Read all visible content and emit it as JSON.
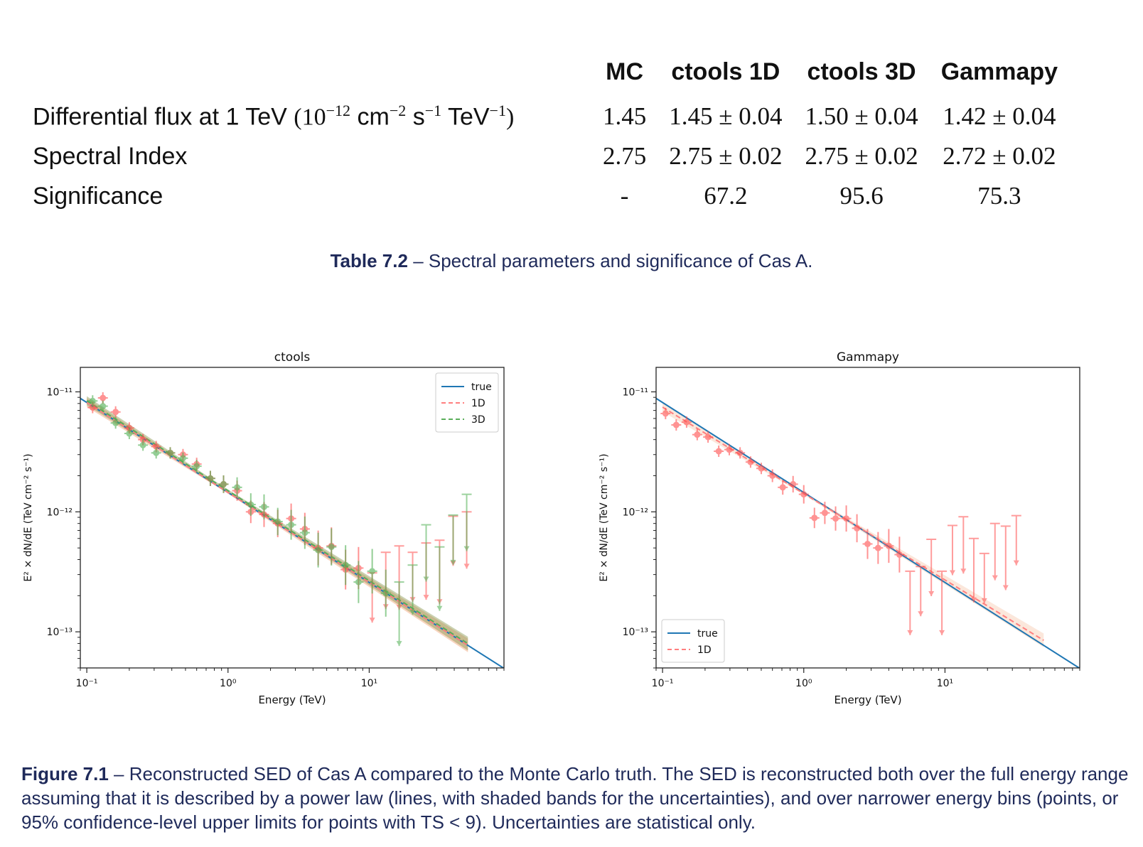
{
  "table": {
    "headers": [
      "MC",
      "ctools 1D",
      "ctools 3D",
      "Gammapy"
    ],
    "rows": [
      {
        "label": "Differential flux at 1 TeV",
        "unit_open": "(10",
        "unit_exp1": "−12",
        "unit_cm": " cm",
        "unit_exp2": "−2",
        "unit_s": " s",
        "unit_exp3": "−1",
        "unit_tev": " TeV",
        "unit_exp4": "−1",
        "unit_close": ")",
        "values": [
          "1.45",
          "1.45 ± 0.04",
          "1.50 ± 0.04",
          "1.42 ± 0.04"
        ]
      },
      {
        "label": "Spectral Index",
        "values": [
          "2.75",
          "2.75 ± 0.02",
          "2.75 ± 0.02",
          "2.72 ± 0.02"
        ]
      },
      {
        "label": "Significance",
        "values": [
          "-",
          "67.2",
          "95.6",
          "75.3"
        ]
      }
    ],
    "caption_label": "Table 7.2",
    "caption_text": " – Spectral parameters and significance of Cas A."
  },
  "figure": {
    "caption_label": "Figure 7.1",
    "caption_text": " – Reconstructed SED of Cas A compared to the Monte Carlo truth. The SED is reconstructed both over the full energy range assuming that it is described by a power law (lines, with shaded bands for the uncertainties), and over narrower energy bins (points, or 95% confidence-level upper limits for points with TS < 9). Uncertainties are statistical only."
  },
  "chart_data": [
    {
      "type": "scatter",
      "title": "ctools",
      "xlabel": "Energy (TeV)",
      "ylabel": "E² × dN/dE (TeV cm⁻² s⁻¹)",
      "xscale": "log",
      "yscale": "log",
      "xlim": [
        0.09,
        90
      ],
      "ylim": [
        5e-14,
        1.6e-11
      ],
      "x_ticks": [
        "10⁻¹",
        "10⁰",
        "10¹"
      ],
      "y_ticks": [
        "10⁻¹¹",
        "10⁻¹²",
        "10⁻¹³"
      ],
      "legend": {
        "position": "top-right",
        "entries": [
          "true",
          "1D",
          "3D"
        ]
      },
      "true_line": {
        "norm_at_1TeV": 1.45e-12,
        "index": 2.75,
        "x_range": [
          0.09,
          90
        ],
        "color": "#1f77b4"
      },
      "fit_lines": [
        {
          "name": "1D",
          "norm_at_1TeV": 1.45e-12,
          "index": 2.75,
          "x_range": [
            0.1,
            50
          ],
          "color": "#ff7f7f"
        },
        {
          "name": "3D",
          "norm_at_1TeV": 1.5e-12,
          "index": 2.75,
          "x_range": [
            0.1,
            50
          ],
          "color": "#5aae5a"
        }
      ],
      "series": [
        {
          "name": "1D",
          "color": "#ff4d4d",
          "points": [
            [
              0.11,
              7.4e-12
            ],
            [
              0.13,
              8.9e-12
            ],
            [
              0.16,
              6.8e-12
            ],
            [
              0.2,
              5e-12
            ],
            [
              0.25,
              4e-12
            ],
            [
              0.31,
              3.5e-12
            ],
            [
              0.39,
              3.1e-12
            ],
            [
              0.48,
              3e-12
            ],
            [
              0.6,
              2.5e-12
            ],
            [
              0.75,
              1.9e-12
            ],
            [
              0.93,
              1.7e-12
            ],
            [
              1.16,
              1.5e-12
            ],
            [
              1.45,
              1e-12
            ],
            [
              1.8,
              9.5e-13
            ],
            [
              2.25,
              8e-13
            ],
            [
              2.8,
              8.8e-13
            ],
            [
              3.5,
              7.2e-13
            ],
            [
              4.35,
              5e-13
            ],
            [
              5.4,
              5.2e-13
            ],
            [
              6.8,
              3.3e-13
            ],
            [
              8.4,
              3.4e-13
            ],
            [
              10.5,
              3.1e-13
            ],
            [
              13.1,
              4.6e-13
            ],
            [
              16.3,
              5.2e-13
            ],
            [
              20.3,
              4.6e-13
            ],
            [
              25.3,
              5.5e-13
            ],
            [
              31.5,
              5.8e-13
            ],
            [
              39.3,
              9.2e-13
            ],
            [
              49,
              1e-12
            ]
          ],
          "upper_limits": [
            false,
            false,
            false,
            false,
            false,
            false,
            false,
            false,
            false,
            false,
            false,
            false,
            false,
            false,
            false,
            false,
            false,
            false,
            false,
            false,
            false,
            true,
            true,
            true,
            true,
            true,
            true,
            true,
            true
          ]
        },
        {
          "name": "3D",
          "color": "#4caf50",
          "points": [
            [
              0.11,
              8.4e-12
            ],
            [
              0.13,
              7.6e-12
            ],
            [
              0.16,
              5.5e-12
            ],
            [
              0.2,
              4.5e-12
            ],
            [
              0.25,
              3.6e-12
            ],
            [
              0.31,
              3.1e-12
            ],
            [
              0.39,
              3.1e-12
            ],
            [
              0.48,
              2.8e-12
            ],
            [
              0.6,
              2.4e-12
            ],
            [
              0.75,
              1.9e-12
            ],
            [
              0.93,
              1.7e-12
            ],
            [
              1.16,
              1.6e-12
            ],
            [
              1.45,
              1.15e-12
            ],
            [
              1.8,
              1.1e-12
            ],
            [
              2.25,
              8.3e-13
            ],
            [
              2.8,
              7.8e-13
            ],
            [
              3.5,
              6.7e-13
            ],
            [
              4.35,
              4.8e-13
            ],
            [
              5.4,
              5.1e-13
            ],
            [
              6.8,
              3.6e-13
            ],
            [
              8.4,
              2.6e-13
            ],
            [
              10.5,
              3.2e-13
            ],
            [
              13.1,
              2.1e-13
            ],
            [
              16.3,
              2.6e-13
            ],
            [
              20.3,
              3.6e-13
            ],
            [
              25.3,
              7.8e-13
            ],
            [
              31.5,
              5.1e-13
            ],
            [
              39.3,
              9.4e-13
            ],
            [
              49,
              1.4e-12
            ]
          ],
          "upper_limits": [
            false,
            false,
            false,
            false,
            false,
            false,
            false,
            false,
            false,
            false,
            false,
            false,
            false,
            false,
            false,
            false,
            false,
            false,
            false,
            false,
            false,
            false,
            false,
            true,
            true,
            true,
            true,
            true,
            true
          ]
        }
      ]
    },
    {
      "type": "scatter",
      "title": "Gammapy",
      "xlabel": "Energy (TeV)",
      "ylabel": "E² × dN/dE (TeV cm⁻² s⁻¹)",
      "xscale": "log",
      "yscale": "log",
      "xlim": [
        0.09,
        90
      ],
      "ylim": [
        5e-14,
        1.6e-11
      ],
      "x_ticks": [
        "10⁻¹",
        "10⁰",
        "10¹"
      ],
      "y_ticks": [
        "10⁻¹¹",
        "10⁻¹²",
        "10⁻¹³"
      ],
      "legend": {
        "position": "bottom-left",
        "entries": [
          "true",
          "1D"
        ]
      },
      "true_line": {
        "norm_at_1TeV": 1.45e-12,
        "index": 2.75,
        "x_range": [
          0.09,
          90
        ],
        "color": "#1f77b4"
      },
      "fit_lines": [
        {
          "name": "1D",
          "norm_at_1TeV": 1.42e-12,
          "index": 2.72,
          "x_range": [
            0.1,
            50
          ],
          "color": "#ff7f7f"
        }
      ],
      "series": [
        {
          "name": "1D",
          "color": "#ff4d4d",
          "points": [
            [
              0.105,
              6.6e-12
            ],
            [
              0.125,
              5.3e-12
            ],
            [
              0.148,
              5.6e-12
            ],
            [
              0.176,
              4.4e-12
            ],
            [
              0.21,
              4.2e-12
            ],
            [
              0.25,
              3.2e-12
            ],
            [
              0.297,
              3.3e-12
            ],
            [
              0.354,
              3.1e-12
            ],
            [
              0.42,
              2.6e-12
            ],
            [
              0.5,
              2.3e-12
            ],
            [
              0.6,
              2e-12
            ],
            [
              0.71,
              1.6e-12
            ],
            [
              0.84,
              1.7e-12
            ],
            [
              1.0,
              1.4e-12
            ],
            [
              1.19,
              8.9e-13
            ],
            [
              1.41,
              9.8e-13
            ],
            [
              1.68,
              8.8e-13
            ],
            [
              2.0,
              8.8e-13
            ],
            [
              2.38,
              7.3e-13
            ],
            [
              2.83,
              5.4e-13
            ],
            [
              3.36,
              5e-13
            ],
            [
              4.0,
              5.2e-13
            ],
            [
              4.76,
              4.4e-13
            ],
            [
              5.66,
              3.2e-13
            ],
            [
              6.73,
              3.5e-13
            ],
            [
              8.0,
              5.9e-13
            ],
            [
              9.51,
              3.2e-13
            ],
            [
              11.3,
              7.7e-13
            ],
            [
              13.5,
              9.1e-13
            ],
            [
              16.0,
              6e-13
            ],
            [
              19.0,
              4.5e-13
            ],
            [
              22.6,
              8e-13
            ],
            [
              26.9,
              7.6e-13
            ],
            [
              32.0,
              9.3e-13
            ]
          ],
          "upper_limits": [
            false,
            false,
            false,
            false,
            false,
            false,
            false,
            false,
            false,
            false,
            false,
            false,
            false,
            false,
            false,
            false,
            false,
            false,
            false,
            false,
            false,
            false,
            false,
            true,
            true,
            true,
            true,
            true,
            true,
            true,
            true,
            true,
            true,
            true
          ]
        }
      ]
    }
  ]
}
